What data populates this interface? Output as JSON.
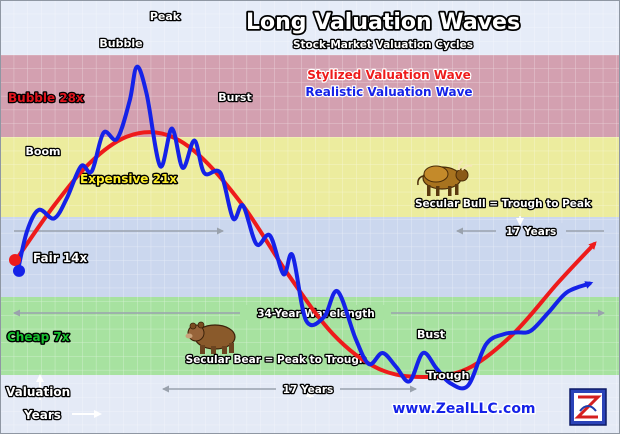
{
  "chart_data": {
    "type": "line",
    "title": "Long Valuation Waves",
    "subtitle": "Stock-Market Valuation Cycles",
    "x_axis_word": "Years",
    "y_axis_word": "Valuation",
    "bands": [
      {
        "label": "Bubble 28x",
        "color": "#d3a0b0",
        "label_color": "#e0141e"
      },
      {
        "label": "Expensive 21x",
        "color": "#ecec9e",
        "label_color": "#ffef2a"
      },
      {
        "label": "Fair 14x",
        "color": "#cbd7ee",
        "label_color": "#ffffff"
      },
      {
        "label": "Cheap 7x",
        "color": "#a7e2a0",
        "label_color": "#17c22e"
      },
      {
        "label": "",
        "color": "#e4eaf6"
      }
    ],
    "series": [
      {
        "name": "Stylized Valuation Wave",
        "color": "#ee1b1b",
        "points": [
          [
            0,
            14
          ],
          [
            4,
            20
          ],
          [
            8,
            25
          ],
          [
            12,
            28
          ],
          [
            16,
            28.4
          ],
          [
            20,
            26
          ],
          [
            25,
            20
          ],
          [
            30,
            12
          ],
          [
            35,
            5
          ],
          [
            40,
            1
          ],
          [
            45,
            0
          ],
          [
            50,
            1
          ],
          [
            55,
            5
          ],
          [
            60,
            11
          ],
          [
            64,
            15.5
          ]
        ]
      },
      {
        "name": "Realistic Valuation Wave",
        "color": "#1522e8",
        "points": [
          [
            0,
            12.5
          ],
          [
            1,
            17
          ],
          [
            2.3,
            19.5
          ],
          [
            4,
            18.5
          ],
          [
            5.4,
            20.8
          ],
          [
            7,
            24.6
          ],
          [
            8.2,
            24
          ],
          [
            9.5,
            28.5
          ],
          [
            11,
            27.8
          ],
          [
            12.4,
            32.2
          ],
          [
            13.2,
            36.2
          ],
          [
            14.3,
            33
          ],
          [
            15.8,
            24.6
          ],
          [
            17.1,
            29
          ],
          [
            18.3,
            24.4
          ],
          [
            19.6,
            27.6
          ],
          [
            20.7,
            23.8
          ],
          [
            22.5,
            23.8
          ],
          [
            23.9,
            18.5
          ],
          [
            25,
            20
          ],
          [
            26.5,
            15.5
          ],
          [
            28,
            16.5
          ],
          [
            29.5,
            12
          ],
          [
            30.5,
            14.2
          ],
          [
            32,
            6.6
          ],
          [
            34,
            7
          ],
          [
            35.5,
            10
          ],
          [
            37.5,
            4.5
          ],
          [
            39,
            1.5
          ],
          [
            40.5,
            2.8
          ],
          [
            42,
            1.2
          ],
          [
            43.5,
            -0.5
          ],
          [
            45,
            2.8
          ],
          [
            46.5,
            1
          ],
          [
            48,
            -0.7
          ],
          [
            50,
            -1
          ],
          [
            52,
            3.8
          ],
          [
            54,
            5
          ],
          [
            55.5,
            5.2
          ],
          [
            57,
            5.4
          ],
          [
            59,
            7.6
          ],
          [
            61,
            9.9
          ],
          [
            63.5,
            10.9
          ]
        ]
      }
    ],
    "annotations": [
      {
        "text": "Peak"
      },
      {
        "text": "Bubble"
      },
      {
        "text": "Boom"
      },
      {
        "text": "Burst"
      },
      {
        "text": "Bust"
      },
      {
        "text": "Trough"
      },
      {
        "text": "34-Year Wavelength"
      },
      {
        "text": "17 Years"
      },
      {
        "text": "17 Years"
      },
      {
        "text": "Secular Bull = Trough to Peak"
      },
      {
        "text": "Secular Bear = Peak to Trough"
      }
    ],
    "grid": true,
    "legend_position": "top-right"
  },
  "footer": {
    "website": "www.ZealLLC.com"
  }
}
